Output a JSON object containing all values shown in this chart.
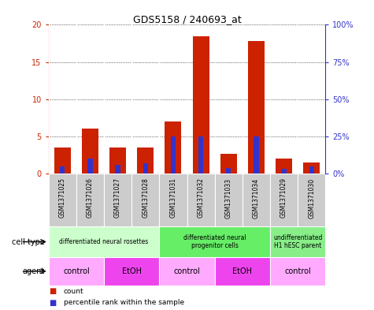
{
  "title": "GDS5158 / 240693_at",
  "samples": [
    "GSM1371025",
    "GSM1371026",
    "GSM1371027",
    "GSM1371028",
    "GSM1371031",
    "GSM1371032",
    "GSM1371033",
    "GSM1371034",
    "GSM1371029",
    "GSM1371030"
  ],
  "counts": [
    3.5,
    6.0,
    3.5,
    3.5,
    7.0,
    18.5,
    2.7,
    17.8,
    2.0,
    1.5
  ],
  "percentiles": [
    5,
    10,
    6,
    7,
    25,
    25,
    4,
    25,
    3,
    5
  ],
  "ylim_left": [
    0,
    20
  ],
  "ylim_right": [
    0,
    100
  ],
  "yticks_left": [
    0,
    5,
    10,
    15,
    20
  ],
  "yticks_right": [
    0,
    25,
    50,
    75,
    100
  ],
  "ytick_labels_left": [
    "0",
    "5",
    "10",
    "15",
    "20"
  ],
  "ytick_labels_right": [
    "0%",
    "25%",
    "50%",
    "75%",
    "100%"
  ],
  "bar_color_red": "#cc2200",
  "bar_color_blue": "#3333cc",
  "sample_bg_color": "#cccccc",
  "cell_type_groups": [
    {
      "label": "differentiated neural rosettes",
      "start": 0,
      "end": 4,
      "color": "#ccffcc"
    },
    {
      "label": "differentiated neural\nprogenitor cells",
      "start": 4,
      "end": 8,
      "color": "#66ee66"
    },
    {
      "label": "undifferentiated\nH1 hESC parent",
      "start": 8,
      "end": 10,
      "color": "#88ee88"
    }
  ],
  "agent_groups": [
    {
      "label": "control",
      "start": 0,
      "end": 2,
      "color": "#ffaaff"
    },
    {
      "label": "EtOH",
      "start": 2,
      "end": 4,
      "color": "#ee44ee"
    },
    {
      "label": "control",
      "start": 4,
      "end": 6,
      "color": "#ffaaff"
    },
    {
      "label": "EtOH",
      "start": 6,
      "end": 8,
      "color": "#ee44ee"
    },
    {
      "label": "control",
      "start": 8,
      "end": 10,
      "color": "#ffaaff"
    }
  ],
  "legend_red_label": "count",
  "legend_blue_label": "percentile rank within the sample",
  "cell_type_label": "cell type",
  "agent_label": "agent"
}
